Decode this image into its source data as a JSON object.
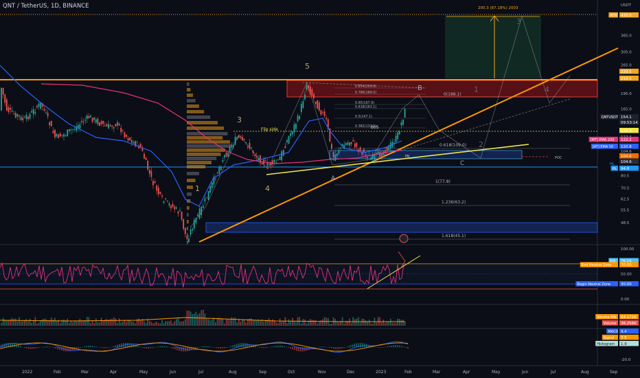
{
  "header": {
    "title": "QNT / TetherUS, 1D, BINANCE"
  },
  "price_axis": {
    "unit": "USDT",
    "ticks": [
      "450.0",
      "365.0",
      "305.0",
      "265.0",
      "195.0",
      "165.0",
      "122.4",
      "104.6",
      "80.5",
      "70.5",
      "62.5",
      "55.5",
      "48.5"
    ],
    "badges": [
      {
        "label": "ATH",
        "value": "430.0",
        "color": "#f5a623"
      },
      {
        "label": "",
        "value": "229.5",
        "color": "#f5a623"
      },
      {
        "label": "",
        "value": "219.5",
        "color": "#f5a623"
      },
      {
        "label": "QNTUSDT",
        "value": "154.1",
        "color": "#1e2230"
      },
      {
        "label": "",
        "value": "09:53:14",
        "color": "#1e2230"
      },
      {
        "label": "",
        "value": "133.3",
        "color": "#f1e54b"
      },
      {
        "label": "[MT] EMA 200",
        "value": "122.2",
        "color": "#e6327a"
      },
      {
        "label": "[AT] EMA 50",
        "value": "120.8",
        "color": "#2962ff"
      },
      {
        "label": "",
        "value": "104.6",
        "color": "#ef6c00"
      },
      {
        "label": "",
        "value": "104.6",
        "color": "#2a2a40"
      },
      {
        "label": "HL",
        "value": "94.8",
        "color": "#2196f3"
      }
    ]
  },
  "annotations": {
    "target_box": "200.3 (87.18%) 2003",
    "wave5": "5",
    "wave3": "3",
    "wave4": "4",
    "wave1": "1",
    "waveA": "A",
    "waveB": "B",
    "waveC": "C",
    "flip_side": "Flip side",
    "bos": "BoS",
    "poc": "POC",
    "pr": "PR",
    "hl": "HL",
    "fibs_upper": [
      "0.854(200.6)",
      "0.786(189.0)",
      "0.65(167.9)",
      "0.618(163.1)",
      "0.5(147.1)",
      "0.382(132.9)"
    ],
    "fib_0": "0(188.1)",
    "fib_0618": "0.618(109.0)",
    "fib_1": "1(77.8)",
    "fib_1236": "1.236(63.2)",
    "fib_1618": "1.618(45.1)",
    "proj_labels": [
      "1",
      "2",
      "3",
      "4"
    ]
  },
  "rsi_panel": {
    "ticks": [
      "100.00",
      "50.00",
      "0.00"
    ],
    "badges": [
      {
        "label": "RSI",
        "value": "76.16",
        "color": "#4fc3f7"
      },
      {
        "label": "End Neutral Zone",
        "value": "70.00",
        "color": "#ff9800"
      },
      {
        "label": "Begin Neutral Zone",
        "value": "30.00",
        "color": "#2962ff"
      }
    ]
  },
  "volume_panel": {
    "badges": [
      {
        "label": "Volume MA",
        "value": "64.171K",
        "color": "#ff9800"
      },
      {
        "label": "Volume",
        "value": "36.256K",
        "color": "#ef5350"
      }
    ]
  },
  "macd_panel": {
    "ticks": [
      "-20.0"
    ],
    "badges": [
      {
        "label": "MACD",
        "value": "9.4",
        "color": "#2962ff"
      },
      {
        "label": "Signal",
        "value": "7.5",
        "color": "#ff9800"
      },
      {
        "label": "Histogram",
        "value": "1.9",
        "color": "#b2dfdb"
      }
    ]
  },
  "time_axis": {
    "labels": [
      "2022",
      "Feb",
      "Mar",
      "Apr",
      "May",
      "Jun",
      "Jul",
      "Aug",
      "Sep",
      "Oct",
      "Nov",
      "Dec",
      "2023",
      "Feb",
      "Mar",
      "Apr",
      "May",
      "Jun",
      "Jul",
      "Aug",
      "Sep"
    ]
  },
  "chart_data": {
    "type": "line",
    "title": "QNT / TetherUS, 1D, BINANCE",
    "x": [
      "2022",
      "Feb",
      "Mar",
      "Apr",
      "May",
      "Jun",
      "Jul",
      "Aug",
      "Sep",
      "Oct",
      "Nov",
      "Dec",
      "2023",
      "Feb"
    ],
    "series": [
      {
        "values": [
          200,
          150,
          120,
          165,
          130,
          90,
          50,
          95,
          120,
          145,
          210,
          115,
          125,
          154
        ]
      }
    ],
    "xlabel": "",
    "ylabel": "",
    "ylim": [
      40,
      460
    ],
    "yscale": "log",
    "grid": false
  }
}
